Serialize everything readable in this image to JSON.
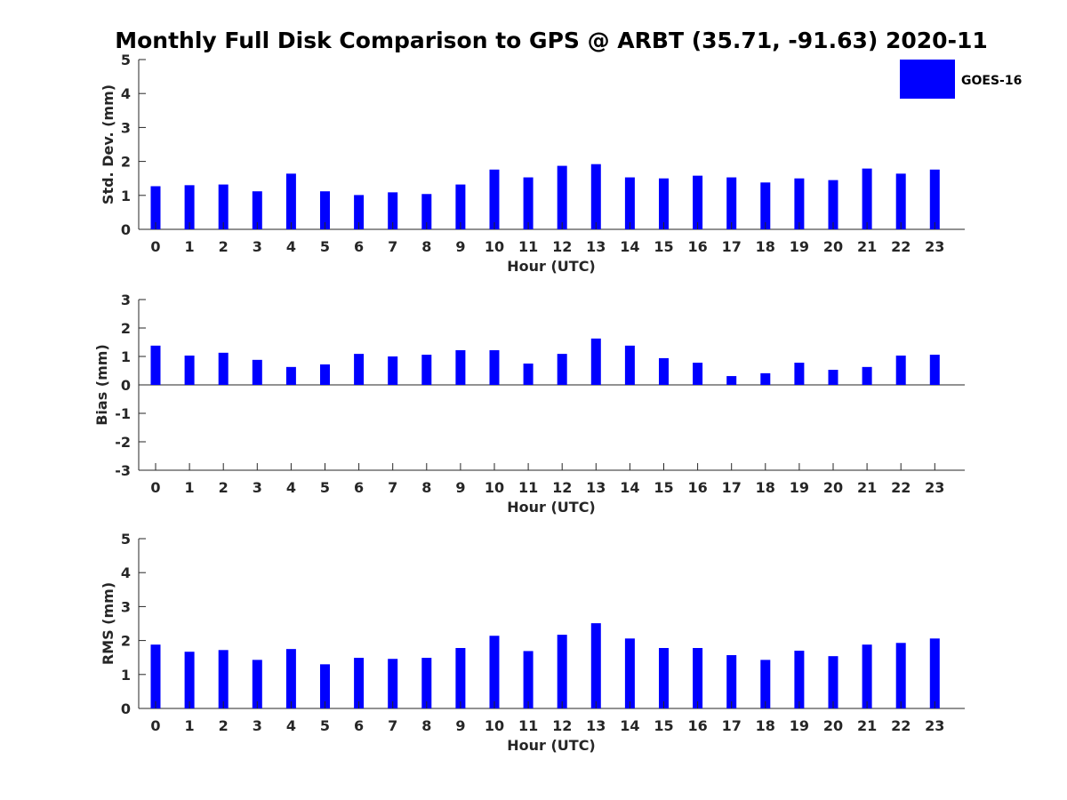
{
  "title": "Monthly Full Disk Comparison to GPS @ ARBT (35.71, -91.63) 2020-11",
  "legend": {
    "label": "GOES-16",
    "color": "#0000ff",
    "position": "top-right"
  },
  "chart_data": [
    {
      "type": "bar",
      "name": "std-dev",
      "xlabel": "Hour (UTC)",
      "ylabel": "Std. Dev. (mm)",
      "ylim": [
        0,
        5
      ],
      "yticks": [
        "0",
        "1",
        "2",
        "3",
        "4",
        "5"
      ],
      "categories": [
        "0",
        "1",
        "2",
        "3",
        "4",
        "5",
        "6",
        "7",
        "8",
        "9",
        "10",
        "11",
        "12",
        "13",
        "14",
        "15",
        "16",
        "17",
        "18",
        "19",
        "20",
        "21",
        "22",
        "23"
      ],
      "series": [
        {
          "name": "GOES-16",
          "values": [
            1.27,
            1.3,
            1.32,
            1.12,
            1.64,
            1.12,
            1.01,
            1.09,
            1.04,
            1.32,
            1.76,
            1.53,
            1.87,
            1.92,
            1.53,
            1.5,
            1.58,
            1.53,
            1.38,
            1.5,
            1.45,
            1.79,
            1.64,
            1.76
          ]
        }
      ]
    },
    {
      "type": "bar",
      "name": "bias",
      "xlabel": "Hour (UTC)",
      "ylabel": "Bias (mm)",
      "ylim": [
        -3,
        3
      ],
      "yticks": [
        "-3",
        "-2",
        "-1",
        "0",
        "1",
        "2",
        "3"
      ],
      "categories": [
        "0",
        "1",
        "2",
        "3",
        "4",
        "5",
        "6",
        "7",
        "8",
        "9",
        "10",
        "11",
        "12",
        "13",
        "14",
        "15",
        "16",
        "17",
        "18",
        "19",
        "20",
        "21",
        "22",
        "23"
      ],
      "series": [
        {
          "name": "GOES-16",
          "values": [
            1.38,
            1.03,
            1.13,
            0.88,
            0.63,
            0.72,
            1.09,
            1.0,
            1.06,
            1.22,
            1.22,
            0.75,
            1.09,
            1.63,
            1.38,
            0.94,
            0.78,
            0.31,
            0.41,
            0.78,
            0.53,
            0.63,
            1.03,
            1.06
          ]
        }
      ]
    },
    {
      "type": "bar",
      "name": "rms",
      "xlabel": "Hour (UTC)",
      "ylabel": "RMS (mm)",
      "ylim": [
        0,
        5
      ],
      "yticks": [
        "0",
        "1",
        "2",
        "3",
        "4",
        "5"
      ],
      "categories": [
        "0",
        "1",
        "2",
        "3",
        "4",
        "5",
        "6",
        "7",
        "8",
        "9",
        "10",
        "11",
        "12",
        "13",
        "14",
        "15",
        "16",
        "17",
        "18",
        "19",
        "20",
        "21",
        "22",
        "23"
      ],
      "series": [
        {
          "name": "GOES-16",
          "values": [
            1.88,
            1.67,
            1.72,
            1.43,
            1.75,
            1.3,
            1.49,
            1.46,
            1.49,
            1.78,
            2.14,
            1.69,
            2.17,
            2.51,
            2.06,
            1.78,
            1.78,
            1.57,
            1.43,
            1.7,
            1.54,
            1.88,
            1.93,
            2.06
          ]
        }
      ]
    }
  ]
}
